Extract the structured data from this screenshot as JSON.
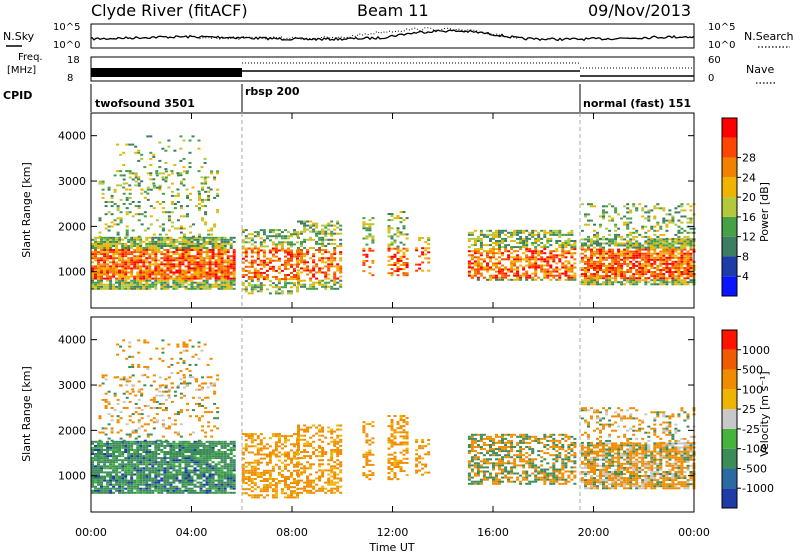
{
  "header": {
    "station": "Clyde River (fitACF)",
    "beam": "Beam 11",
    "date": "09/Nov/2013"
  },
  "strips": {
    "nsky_label": "N.Sky",
    "nsearch_label": "N.Search",
    "freq_label_1": "Freq.",
    "freq_label_2": "[MHz]",
    "nave_label": "Nave",
    "cpid_label": "CPID",
    "left_ticks_top": [
      "10^5",
      "10^0"
    ],
    "right_ticks_top": [
      "10^5",
      "10^0"
    ],
    "left_ticks_freq": [
      "18",
      "8"
    ],
    "right_ticks_nave": [
      "60",
      "0"
    ],
    "programs": [
      {
        "name": "twofsound 3501",
        "start_hour": 0
      },
      {
        "name": "rbsp 200",
        "start_hour": 6
      },
      {
        "name": "normal (fast) 151",
        "start_hour": 19.6
      }
    ]
  },
  "chart_data": [
    {
      "type": "heatmap",
      "panel": "power",
      "ylabel": "Slant Range [km]",
      "xlabel": "Time UT",
      "ylim": [
        200,
        4500
      ],
      "xlim": [
        0,
        24
      ],
      "yticks": [
        "1000",
        "2000",
        "3000",
        "4000"
      ],
      "xticks": [
        "00:00",
        "04:00",
        "08:00",
        "12:00",
        "16:00",
        "20:00",
        "00:00"
      ],
      "colorbar": {
        "label": "Power [dB]",
        "ticks": [
          "4",
          "8",
          "12",
          "16",
          "20",
          "24",
          "28"
        ],
        "colors": [
          "#0a14ff",
          "#1e3ca8",
          "#3c7d64",
          "#46a046",
          "#b4c83c",
          "#f0b400",
          "#f08200",
          "#ff4600",
          "#ff0000"
        ]
      }
    },
    {
      "type": "heatmap",
      "panel": "velocity",
      "ylabel": "Slant Range [km]",
      "xlabel": "Time UT",
      "ylim": [
        200,
        4500
      ],
      "xlim": [
        0,
        24
      ],
      "yticks": [
        "1000",
        "2000",
        "3000",
        "4000"
      ],
      "xticks": [
        "00:00",
        "04:00",
        "08:00",
        "12:00",
        "16:00",
        "20:00",
        "00:00"
      ],
      "colorbar": {
        "label": "Velocity [m s⁻¹]",
        "ticks": [
          "1000",
          "500",
          "100",
          "25",
          "-25",
          "-100",
          "-500",
          "-1000"
        ],
        "colors": [
          "#1e3ca8",
          "#2b6aa0",
          "#3c8c5a",
          "#46b43c",
          "#c8c8c8",
          "#f0b400",
          "#f08c00",
          "#f05a00",
          "#ff1400"
        ]
      }
    }
  ]
}
